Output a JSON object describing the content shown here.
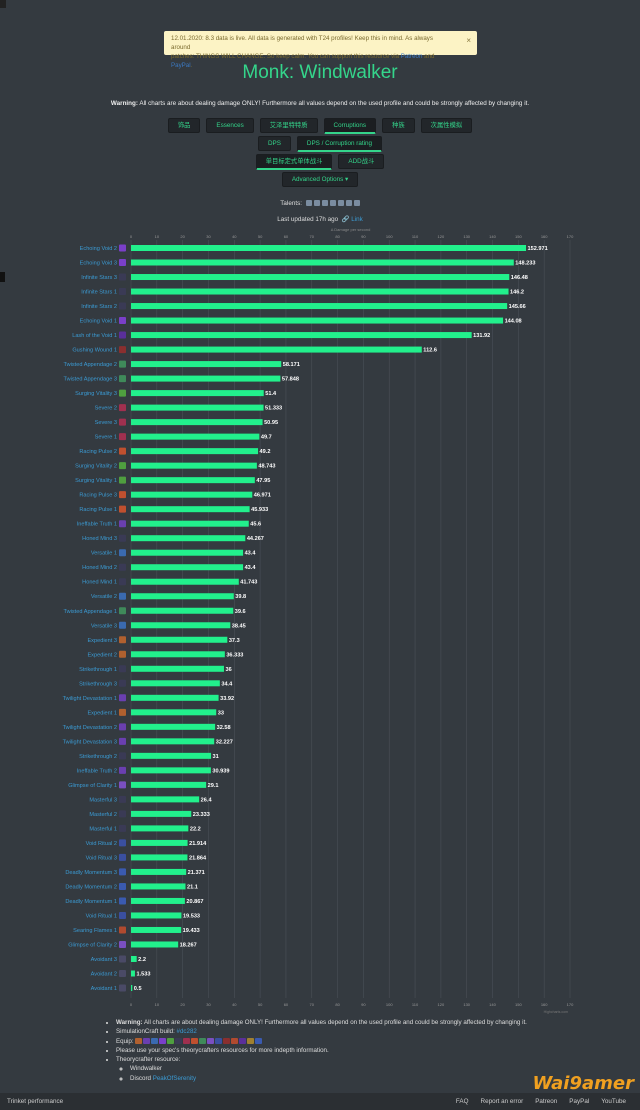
{
  "alert": {
    "line1": "12.01.2020: 8.3 data is live. All data is generated with T24 profiles! Keep this in mind. As always around",
    "line2_pre": "patches: THINGS WILL CHANGE. So keep calm. You can support this resource via ",
    "patreon": "Patreon",
    "and": " and ",
    "paypal": "PayPal",
    "dot": ".",
    "close": "×"
  },
  "title": "Monk: Windwalker",
  "warning": {
    "bold": "Warning:",
    "text": " All charts are about dealing damage ONLY! Furthermore all values depend on the used profile and could be strongly affected by changing it."
  },
  "tabs_row1": [
    "饰品",
    "Essences",
    "艾泽里特特质",
    "Corruptions",
    "种族",
    "次属性模拟"
  ],
  "tabs_row2": [
    "DPS",
    "DPS / Corruption rating"
  ],
  "tabs_row3": [
    "单目标定式单体战斗",
    "ADD战斗"
  ],
  "advanced": "Advanced Options ▾",
  "talents_label": "Talents:",
  "updated": "Last updated 17h ago",
  "link": "Link",
  "chart_data": {
    "type": "bar",
    "orientation": "horizontal",
    "xlabel": "Δ Damage per second",
    "xlim": [
      0,
      170
    ],
    "xticks": [
      0,
      10,
      20,
      30,
      40,
      50,
      60,
      70,
      80,
      90,
      100,
      110,
      120,
      130,
      140,
      150,
      160,
      170
    ],
    "grid": true,
    "bar_color": "#22f08c",
    "label_color": "#3b9bd4",
    "credit": "Highcharts.com",
    "categories": [
      "Echoing Void 2",
      "Echoing Void 3",
      "Infinite Stars 3",
      "Infinite Stars 1",
      "Infinite Stars 2",
      "Echoing Void 1",
      "Lash of the Void 1",
      "Gushing Wound 1",
      "Twisted Appendage 2",
      "Twisted Appendage 3",
      "Surging Vitality 3",
      "Severe 2",
      "Severe 3",
      "Severe 1",
      "Racing Pulse 2",
      "Surging Vitality 2",
      "Surging Vitality 1",
      "Racing Pulse 3",
      "Racing Pulse 1",
      "Ineffable Truth 1",
      "Honed Mind 3",
      "Versatile 1",
      "Honed Mind 2",
      "Honed Mind 1",
      "Versatile 2",
      "Twisted Appendage 1",
      "Versatile 3",
      "Expedient 3",
      "Expedient 2",
      "Strikethrough 1",
      "Strikethrough 3",
      "Twilight Devastation 1",
      "Expedient 1",
      "Twilight Devastation 2",
      "Twilight Devastation 3",
      "Strikethrough 2",
      "Ineffable Truth 2",
      "Glimpse of Clarity 1",
      "Masterful 3",
      "Masterful 2",
      "Masterful 1",
      "Void Ritual 2",
      "Void Ritual 3",
      "Deadly Momentum 3",
      "Deadly Momentum 2",
      "Deadly Momentum 1",
      "Void Ritual 1",
      "Searing Flames 1",
      "Glimpse of Clarity 2",
      "Avoidant 3",
      "Avoidant 2",
      "Avoidant 1"
    ],
    "values": [
      152.971,
      148.233,
      146.48,
      146.2,
      145.66,
      144.08,
      131.92,
      112.6,
      58.171,
      57.848,
      51.4,
      51.333,
      50.95,
      49.7,
      49.2,
      48.743,
      47.95,
      46.971,
      45.933,
      45.6,
      44.267,
      43.4,
      43.4,
      41.743,
      39.8,
      39.6,
      38.45,
      37.3,
      36.333,
      36,
      34.4,
      33.92,
      33,
      32.58,
      32.227,
      31,
      30.939,
      29.1,
      26.4,
      23.333,
      22.2,
      21.914,
      21.864,
      21.371,
      21.1,
      20.867,
      19.533,
      19.433,
      18.267,
      2.2,
      1.533,
      0.5
    ],
    "data_labels": [
      "152.971",
      "148.233",
      "146.48",
      "146.2",
      "145.66",
      "144.08",
      "131.92",
      "112.6",
      "58.171",
      "57.848",
      "51.4",
      "51.333",
      "50.95",
      "49.7",
      "49.2",
      "48.743",
      "47.95",
      "46.971",
      "45.933",
      "45.6",
      "44.267",
      "43.4",
      "43.4",
      "41.743",
      "39.8",
      "39.6",
      "38.45",
      "37.3",
      "36.333",
      "36",
      "34.4",
      "33.92",
      "33",
      "32.58",
      "32.227",
      "31",
      "30.939",
      "29.1",
      "26.4",
      "23.333",
      "22.2",
      "21.914",
      "21.864",
      "21.371",
      "21.1",
      "20.867",
      "19.533",
      "19.433",
      "18.267",
      "2.2",
      "1.533",
      "0.5"
    ],
    "icon_colors": [
      "#7a3fc9",
      "#7a3fc9",
      "#3a3a55",
      "#3a3a55",
      "#3a3a55",
      "#7a3fc9",
      "#5a2f9a",
      "#8a2f2f",
      "#3f8a5a",
      "#3f8a5a",
      "#4f9f3f",
      "#a0304f",
      "#a0304f",
      "#a0304f",
      "#c0502f",
      "#4f9f3f",
      "#4f9f3f",
      "#c0502f",
      "#c0502f",
      "#6a3fb0",
      "#3a3a55",
      "#3a6ab0",
      "#3a3a55",
      "#3a3a55",
      "#3a6ab0",
      "#3f8a5a",
      "#3a6ab0",
      "#b0602f",
      "#b0602f",
      "#3a3a55",
      "#3a3a55",
      "#6a3fb0",
      "#b0602f",
      "#6a3fb0",
      "#6a3fb0",
      "#3a3a55",
      "#6a3fb0",
      "#7a4fc0",
      "#3a3a55",
      "#3a3a55",
      "#3a3a55",
      "#3a4fa0",
      "#3a4fa0",
      "#3a5ab0",
      "#3a5ab0",
      "#3a5ab0",
      "#3a4fa0",
      "#b04a2f",
      "#7a4fc0",
      "#4a4a66",
      "#4a4a66",
      "#4a4a66"
    ]
  },
  "notes": {
    "warning_bold": "Warning:",
    "warning_text": " All charts are about dealing damage ONLY! Furthermore all values depend on the used profile and could be strongly affected by changing it.",
    "simc_label": "SimulationCraft build: ",
    "simc_build": "#dc282",
    "equip_label": "Equip:",
    "please": "Please use your spec's theorycrafters resources for more indepth information.",
    "theory_label": "Theorycrafter resource:",
    "spec": "Windwalker",
    "discord_label": "Discord ",
    "discord_link": "PeakOfSerenity"
  },
  "footer": {
    "left": "Trinket performance",
    "faq": "FAQ",
    "report": "Report an error",
    "patreon": "Patreon",
    "paypal": "PayPal",
    "youtube": "YouTube"
  },
  "watermark": "Wai9amer"
}
